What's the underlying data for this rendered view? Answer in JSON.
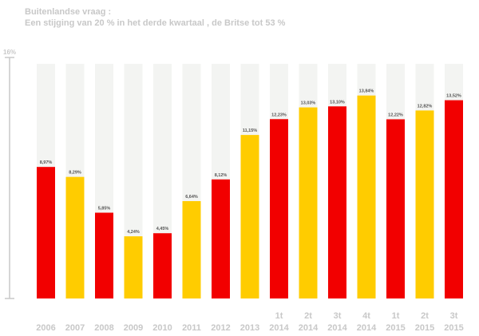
{
  "chart_data": {
    "type": "bar",
    "title": "Buitenlandse vraag :",
    "subtitle": "Een stijging van 20 % in het derde kwartaal , de Britse tot 53 %",
    "y_axis_max_label": "16%",
    "ylim": [
      0,
      16
    ],
    "categories": [
      [
        "2006"
      ],
      [
        "2007"
      ],
      [
        "2008"
      ],
      [
        "2009"
      ],
      [
        "2010"
      ],
      [
        "2011"
      ],
      [
        "2012"
      ],
      [
        "2013"
      ],
      [
        "1t",
        "2014"
      ],
      [
        "2t",
        "2014"
      ],
      [
        "3t",
        "2014"
      ],
      [
        "4t",
        "2014"
      ],
      [
        "1t",
        "2015"
      ],
      [
        "2t",
        "2015"
      ],
      [
        "3t",
        "2015"
      ]
    ],
    "values": [
      8.97,
      8.29,
      5.85,
      4.24,
      4.45,
      6.64,
      8.12,
      11.15,
      12.23,
      13.03,
      13.1,
      13.84,
      12.22,
      12.82,
      13.52
    ],
    "value_labels": [
      "8,97%",
      "8,29%",
      "5,85%",
      "4,24%",
      "4,45%",
      "6,64%",
      "8,12%",
      "11,15%",
      "12,23%",
      "13,03%",
      "13,10%",
      "13,84%",
      "12,22%",
      "12,82%",
      "13,52%"
    ],
    "bar_colors": [
      "red",
      "yellow",
      "red",
      "yellow",
      "red",
      "yellow",
      "red",
      "yellow",
      "red",
      "yellow",
      "red",
      "yellow",
      "red",
      "yellow",
      "red"
    ],
    "colors": {
      "red": "#f20000",
      "yellow": "#ffcc00",
      "track": "#f3f4f2",
      "axis": "#c8c8c8",
      "label": "#555555",
      "category": "#c8c8c8"
    },
    "grid": false
  }
}
